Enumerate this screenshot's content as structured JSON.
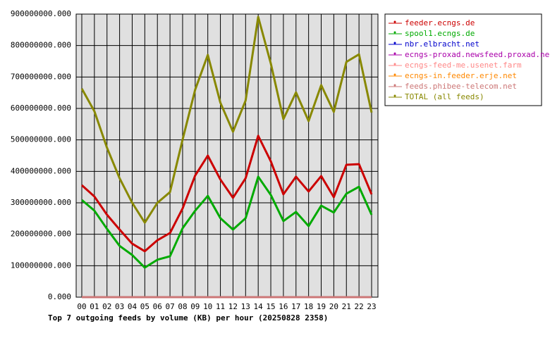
{
  "chart_data": {
    "type": "line",
    "title": "Top 7 outgoing feeds by volume (KB) per hour (20250828 2358)",
    "categories": [
      "00",
      "01",
      "02",
      "03",
      "04",
      "05",
      "06",
      "07",
      "08",
      "09",
      "10",
      "11",
      "12",
      "13",
      "14",
      "15",
      "16",
      "17",
      "18",
      "19",
      "20",
      "21",
      "22",
      "23"
    ],
    "series": [
      {
        "name": "feeder.ecngs.de",
        "color": "#cc0000",
        "values": [
          356000000,
          320000000,
          262000000,
          215000000,
          170000000,
          146000000,
          181000000,
          204000000,
          282000000,
          387000000,
          450000000,
          374000000,
          316000000,
          378000000,
          513000000,
          432000000,
          327000000,
          383000000,
          336000000,
          385000000,
          318000000,
          421000000,
          423000000,
          327000000
        ]
      },
      {
        "name": "spool1.ecngs.de",
        "color": "#00aa00",
        "values": [
          309000000,
          275000000,
          217000000,
          163000000,
          134000000,
          94000000,
          119000000,
          130000000,
          219000000,
          275000000,
          322000000,
          251000000,
          215000000,
          251000000,
          383000000,
          325000000,
          242000000,
          271000000,
          226000000,
          291000000,
          269000000,
          329000000,
          351000000,
          262000000
        ]
      },
      {
        "name": "nbr.elbracht.net",
        "color": "#0000cc",
        "values": [
          0,
          0,
          0,
          0,
          0,
          0,
          0,
          0,
          0,
          0,
          0,
          0,
          0,
          0,
          0,
          0,
          0,
          0,
          0,
          0,
          0,
          0,
          0,
          0
        ]
      },
      {
        "name": "ecngs-proxad.newsfeed.proxad.net",
        "color": "#aa00aa",
        "values": [
          0,
          0,
          0,
          0,
          0,
          0,
          0,
          0,
          0,
          0,
          0,
          0,
          0,
          0,
          0,
          0,
          0,
          0,
          0,
          0,
          0,
          0,
          0,
          0
        ]
      },
      {
        "name": "ecngs-feed-me.usenet.farm",
        "color": "#ff8888",
        "values": [
          0,
          0,
          0,
          0,
          0,
          0,
          0,
          0,
          0,
          0,
          0,
          0,
          0,
          0,
          0,
          0,
          0,
          0,
          0,
          0,
          0,
          0,
          0,
          0
        ]
      },
      {
        "name": "ecngs-in.feeder.erje.net",
        "color": "#ff8800",
        "values": [
          0,
          0,
          0,
          0,
          0,
          0,
          0,
          0,
          0,
          0,
          0,
          0,
          0,
          0,
          0,
          0,
          0,
          0,
          0,
          0,
          0,
          0,
          0,
          0
        ]
      },
      {
        "name": "feeds.phibee-telecom.net",
        "color": "#cc7777",
        "values": [
          0,
          0,
          0,
          0,
          0,
          0,
          0,
          0,
          0,
          0,
          0,
          0,
          0,
          0,
          0,
          0,
          0,
          0,
          0,
          0,
          0,
          0,
          0,
          0
        ]
      },
      {
        "name": "TOTAL (all feeds)",
        "color": "#888800",
        "values": [
          663000000,
          591000000,
          475000000,
          378000000,
          300000000,
          237000000,
          300000000,
          334000000,
          501000000,
          660000000,
          770000000,
          618000000,
          526000000,
          625000000,
          891000000,
          743000000,
          566000000,
          651000000,
          560000000,
          674000000,
          589000000,
          748000000,
          772000000,
          587000000
        ]
      }
    ],
    "ylim": [
      0,
      900000000
    ],
    "yticks": [
      {
        "value": 0,
        "label": "0.000"
      },
      {
        "value": 100000000,
        "label": "100000000.000"
      },
      {
        "value": 200000000,
        "label": "200000000.000"
      },
      {
        "value": 300000000,
        "label": "300000000.000"
      },
      {
        "value": 400000000,
        "label": "400000000.000"
      },
      {
        "value": 500000000,
        "label": "500000000.000"
      },
      {
        "value": 600000000,
        "label": "600000000.000"
      },
      {
        "value": 700000000,
        "label": "700000000.000"
      },
      {
        "value": 800000000,
        "label": "800000000.000"
      },
      {
        "value": 900000000,
        "label": "900000000.000"
      }
    ],
    "grid": true
  }
}
